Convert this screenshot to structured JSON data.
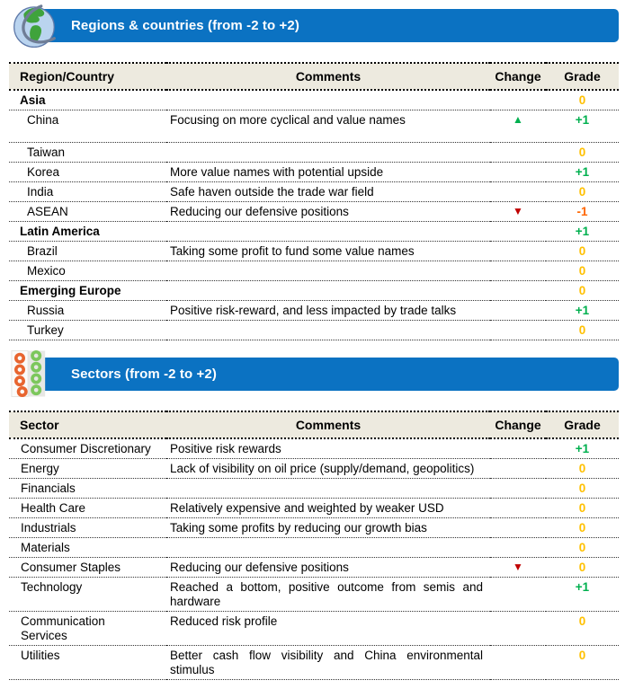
{
  "colors": {
    "banner_blue": "#0B72C2",
    "header_bg": "#EDEADF",
    "grade_zero": "#FFC000",
    "grade_pos": "#00B04F",
    "grade_neg": "#FF6600",
    "change_up": "#00B04F",
    "change_down": "#C00000",
    "globe_sea": "#BAD4EF",
    "globe_land": "#3FA33C",
    "globe_ring": "#6F7D96",
    "dots_orange": "#E8652F",
    "dots_green": "#7CC75C"
  },
  "icons": {
    "up": "▲",
    "down": "▼"
  },
  "regions_section": {
    "title": "Regions & countries (from -2 to +2)",
    "banner_icon": "globe-icon",
    "table": {
      "col_name": "Region/Country",
      "col_comments": "Comments",
      "col_change": "Change",
      "col_grade": "Grade",
      "rows": [
        {
          "name": "Asia",
          "bold": true,
          "indent": false,
          "tall": false,
          "comment": "",
          "change": "",
          "grade": "0",
          "grade_key": "zero"
        },
        {
          "name": "China",
          "bold": false,
          "indent": true,
          "tall": true,
          "comment": "Focusing on more cyclical and value names",
          "change": "up",
          "grade": "+1",
          "grade_key": "pos"
        },
        {
          "name": "Taiwan",
          "bold": false,
          "indent": true,
          "tall": false,
          "comment": "",
          "change": "",
          "grade": "0",
          "grade_key": "zero"
        },
        {
          "name": "Korea",
          "bold": false,
          "indent": true,
          "tall": false,
          "comment": "More value names with potential upside",
          "change": "",
          "grade": "+1",
          "grade_key": "pos"
        },
        {
          "name": "India",
          "bold": false,
          "indent": true,
          "tall": false,
          "comment": "Safe haven outside the trade war field",
          "change": "",
          "grade": "0",
          "grade_key": "zero"
        },
        {
          "name": "ASEAN",
          "bold": false,
          "indent": true,
          "tall": false,
          "comment": "Reducing our defensive positions",
          "change": "down",
          "grade": "-1",
          "grade_key": "neg"
        },
        {
          "name": "Latin America",
          "bold": true,
          "indent": false,
          "tall": false,
          "comment": "",
          "change": "",
          "grade": "+1",
          "grade_key": "pos"
        },
        {
          "name": "Brazil",
          "bold": false,
          "indent": true,
          "tall": false,
          "comment": "Taking some profit to fund some value names",
          "change": "",
          "grade": "0",
          "grade_key": "zero"
        },
        {
          "name": "Mexico",
          "bold": false,
          "indent": true,
          "tall": false,
          "comment": "",
          "change": "",
          "grade": "0",
          "grade_key": "zero"
        },
        {
          "name": "Emerging Europe",
          "bold": true,
          "indent": false,
          "tall": false,
          "comment": "",
          "change": "",
          "grade": "0",
          "grade_key": "zero"
        },
        {
          "name": "Russia",
          "bold": false,
          "indent": true,
          "tall": false,
          "comment": "Positive risk-reward, and less impacted by trade talks",
          "change": "",
          "grade": "+1",
          "grade_key": "pos"
        },
        {
          "name": "Turkey",
          "bold": false,
          "indent": true,
          "tall": false,
          "comment": "",
          "change": "",
          "grade": "0",
          "grade_key": "zero"
        }
      ]
    }
  },
  "sectors_section": {
    "title": "Sectors (from -2 to +2)",
    "banner_icon": "dots-icon",
    "table": {
      "col_name": "Sector",
      "col_comments": "Comments",
      "col_change": "Change",
      "col_grade": "Grade",
      "rows": [
        {
          "name": "Consumer Discretionary",
          "bold": false,
          "indent": false,
          "tall": false,
          "comment": "Positive risk rewards",
          "change": "",
          "grade": "+1",
          "grade_key": "pos"
        },
        {
          "name": "Energy",
          "bold": false,
          "indent": false,
          "tall": false,
          "comment": "Lack of visibility on oil price (supply/demand, geopolitics)",
          "change": "",
          "grade": "0",
          "grade_key": "zero"
        },
        {
          "name": "Financials",
          "bold": false,
          "indent": false,
          "tall": false,
          "comment": "",
          "change": "",
          "grade": "0",
          "grade_key": "zero"
        },
        {
          "name": "Health Care",
          "bold": false,
          "indent": false,
          "tall": false,
          "comment": "Relatively expensive and weighted by weaker USD",
          "change": "",
          "grade": "0",
          "grade_key": "zero"
        },
        {
          "name": "Industrials",
          "bold": false,
          "indent": false,
          "tall": false,
          "comment": "Taking some profits by reducing our growth bias",
          "change": "",
          "grade": "0",
          "grade_key": "zero"
        },
        {
          "name": "Materials",
          "bold": false,
          "indent": false,
          "tall": false,
          "comment": "",
          "change": "",
          "grade": "0",
          "grade_key": "zero"
        },
        {
          "name": "Consumer Staples",
          "bold": false,
          "indent": false,
          "tall": false,
          "comment": "Reducing our defensive positions",
          "change": "down",
          "grade": "0",
          "grade_key": "zero"
        },
        {
          "name": "Technology",
          "bold": false,
          "indent": false,
          "tall": false,
          "comment": "Reached a bottom, positive outcome from semis and hardware",
          "change": "",
          "grade": "+1",
          "grade_key": "pos"
        },
        {
          "name": "Communication\nServices",
          "bold": false,
          "indent": false,
          "tall": false,
          "comment": "Reduced risk profile",
          "change": "",
          "grade": "0",
          "grade_key": "zero"
        },
        {
          "name": "Utilities",
          "bold": false,
          "indent": false,
          "tall": false,
          "comment": "Better cash flow visibility and China environmental stimulus",
          "change": "",
          "grade": "0",
          "grade_key": "zero"
        }
      ]
    }
  }
}
